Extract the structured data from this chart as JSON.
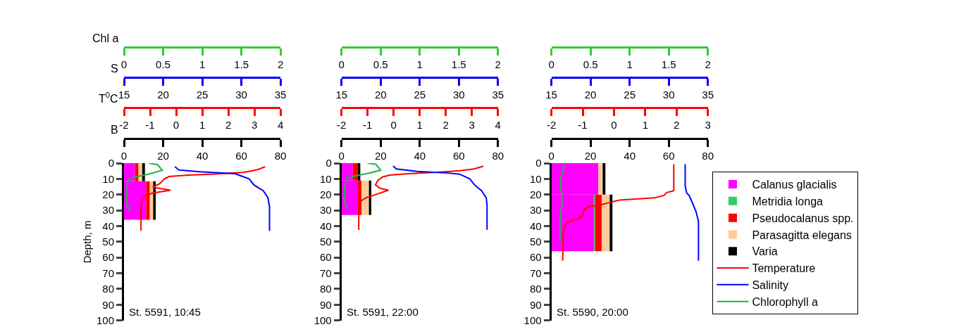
{
  "chart_data": [
    {
      "type": "bar",
      "orientation": "horizontal",
      "stacked": true,
      "x": [
        5.75,
        23.75
      ],
      "xlabel": "B",
      "x2label": "T$^{0}$C",
      "ylabel": "Depth, m",
      "xlim": [
        0,
        80
      ],
      "xticks": [
        0,
        20,
        40,
        60,
        80
      ],
      "x2lim": [
        -2,
        4
      ],
      "x2ticks": [
        -2,
        -1,
        0,
        1,
        2,
        3,
        4
      ],
      "ylim": [
        100,
        0
      ],
      "yticks": [
        0,
        10,
        20,
        30,
        40,
        50,
        60,
        70,
        80,
        90,
        100
      ],
      "annotations": [
        "St. 5591, 10:45"
      ],
      "series": [
        {
          "color": "#ff00ff",
          "values": [
            5.6,
            11.3
          ]
        },
        {
          "color": "#ff0000",
          "values": [
            1.8,
            1.9
          ]
        },
        {
          "color": "#ffcc99",
          "values": [
            1.9,
            1.7
          ]
        },
        {
          "color": "#000000",
          "values": [
            1.4,
            1.3
          ]
        },
        {
          "type": "line",
          "axis": "x2",
          "color": "#ff0000",
          "x": [
            2.2,
            4,
            5.8,
            7,
            7.6,
            8.5,
            10,
            13,
            15.3,
            17.2,
            19,
            20.5,
            22.8,
            28,
            43
          ],
          "values": [
            3.41,
            3.15,
            2.61,
            1.35,
            0.45,
            -0.27,
            -0.45,
            -0.63,
            -0.9,
            -0.22,
            -0.9,
            -1.17,
            -1.31,
            -1.35,
            -1.35
          ]
        }
      ]
    },
    {
      "type": "line",
      "orientation": "horizontal",
      "xlabel": "S",
      "x2label": "Chl a",
      "xlim": [
        15,
        35
      ],
      "xticks": [
        15,
        20,
        25,
        30,
        35
      ],
      "x2lim": [
        0,
        2
      ],
      "x2ticks": [
        0,
        0.5,
        1,
        1.5,
        2
      ],
      "ylim": [
        100,
        0
      ],
      "tick_labels": "x",
      "series": [
        {
          "color": "#0000ff",
          "x": [
            2.2,
            4.3,
            5.5,
            6.7,
            7.8,
            10,
            13.8,
            17.5,
            22,
            28,
            43
          ],
          "values": [
            21.5,
            22.0,
            24.7,
            29.2,
            29.8,
            31.0,
            31.6,
            32.8,
            33.4,
            33.6,
            33.6
          ]
        },
        {
          "axis": "x2",
          "color": "#22b04a",
          "x": [
            0,
            1,
            4.5,
            7,
            9.3,
            10.8,
            14.5,
            25,
            30
          ],
          "values": [
            0.32,
            0.43,
            0.49,
            0.31,
            0.1,
            0.05,
            0.04,
            0.03,
            0.07
          ]
        }
      ]
    },
    {
      "type": "bar",
      "orientation": "horizontal",
      "stacked": true,
      "x": [
        5.5,
        22
      ],
      "xlim": [
        0,
        80
      ],
      "xticks": [
        0,
        20,
        40,
        60,
        80
      ],
      "x2lim": [
        -2,
        4
      ],
      "x2ticks": [
        -2,
        -1,
        0,
        1,
        2,
        3,
        4
      ],
      "ylim": [
        100,
        0
      ],
      "yticks": [
        0,
        10,
        20,
        30,
        40,
        50,
        60,
        70,
        80,
        90,
        100
      ],
      "annotations": [
        "St. 5591, 22:00"
      ],
      "series": [
        {
          "color": "#ff00ff",
          "values": [
            5.8,
            8.4
          ]
        },
        {
          "color": "#ff0000",
          "values": [
            2.6,
            1.8
          ]
        },
        {
          "color": "#ffcc99",
          "values": [
            0,
            3.8
          ]
        },
        {
          "color": "#000000",
          "values": [
            1.2,
            1.2
          ]
        },
        {
          "type": "line",
          "axis": "x2",
          "color": "#ff0000",
          "x": [
            1.9,
            3.7,
            4.8,
            5.8,
            6.7,
            7.6,
            8.8,
            10.8,
            13.8,
            16,
            17.2,
            20.5,
            22,
            24.3,
            26.5,
            42.5
          ],
          "values": [
            3.44,
            3.08,
            2.54,
            1.64,
            0.56,
            -0.16,
            -0.43,
            -0.6,
            -0.7,
            -0.52,
            -0.2,
            -0.79,
            -1.06,
            -1.28,
            -1.34,
            -1.34
          ]
        }
      ]
    },
    {
      "type": "line",
      "orientation": "horizontal",
      "xlim": [
        15,
        35
      ],
      "xticks": [
        15,
        20,
        25,
        30,
        35
      ],
      "x2lim": [
        0,
        2
      ],
      "x2ticks": [
        0,
        0.5,
        1,
        1.5,
        2
      ],
      "ylim": [
        100,
        0
      ],
      "tick_labels": "x",
      "series": [
        {
          "color": "#0000ff",
          "x": [
            1.8,
            3.7,
            5.2,
            6.3,
            7,
            10,
            13.8,
            17.5,
            22,
            26.5,
            42.3
          ],
          "values": [
            21.6,
            22.0,
            24.7,
            28.7,
            30.1,
            31.4,
            32.0,
            32.9,
            33.5,
            33.6,
            33.6
          ]
        },
        {
          "axis": "x2",
          "color": "#22b04a",
          "x": [
            0,
            0.7,
            4.5,
            6.7,
            8.5,
            10,
            16,
            24.3,
            29.5
          ],
          "values": [
            0.33,
            0.44,
            0.5,
            0.32,
            0.14,
            0.06,
            0.04,
            0.03,
            0.08
          ]
        }
      ]
    },
    {
      "type": "bar",
      "orientation": "horizontal",
      "stacked": true,
      "x": [
        10,
        38
      ],
      "legend": "right",
      "xlim": [
        0,
        80
      ],
      "xticks": [
        0,
        20,
        40,
        60,
        80
      ],
      "x2lim": [
        -2,
        3
      ],
      "x2ticks": [
        -2,
        -1,
        0,
        1,
        2,
        3
      ],
      "ylim": [
        100,
        0
      ],
      "yticks": [
        0,
        10,
        20,
        30,
        40,
        50,
        60,
        70,
        80,
        90,
        100
      ],
      "annotations": [
        "St. 5590, 20:00"
      ],
      "series": [
        {
          "name": "Calanus glacialis",
          "color": "#ff00ff",
          "values": [
            24.0,
            21.8
          ]
        },
        {
          "name": "Metridia longa",
          "color": "#33cc66",
          "values": [
            0,
            0.5
          ]
        },
        {
          "name": "Pseudocalanus spp.",
          "color": "#ff0000",
          "values": [
            0,
            3.4
          ]
        },
        {
          "name": "Parasagitta elegans",
          "color": "#ffcc99",
          "values": [
            2.2,
            4.1
          ]
        },
        {
          "name": "Varia",
          "color": "#000000",
          "values": [
            1.4,
            1.4
          ]
        },
        {
          "name": "Temperature",
          "type": "line",
          "axis": "x2",
          "color": "#ff0000",
          "x": [
            0.7,
            17.5,
            18.7,
            20.5,
            22,
            23.5,
            25.3,
            26.5,
            27.7,
            29.5,
            34,
            35.5,
            37,
            38.5,
            43.8,
            62
          ],
          "values": [
            1.91,
            1.91,
            1.68,
            1.6,
            1.3,
            0.18,
            -0.2,
            -0.42,
            -0.8,
            -0.95,
            -1.02,
            -1.17,
            -1.4,
            -1.54,
            -1.62,
            -1.64
          ]
        }
      ]
    },
    {
      "type": "line",
      "orientation": "horizontal",
      "legend": "right",
      "xlim": [
        15,
        35
      ],
      "xticks": [
        15,
        20,
        25,
        30,
        35
      ],
      "x2lim": [
        0,
        2
      ],
      "x2ticks": [
        0,
        0.5,
        1,
        1.5,
        2
      ],
      "ylim": [
        100,
        0
      ],
      "tick_labels": "x",
      "series": [
        {
          "name": "Salinity",
          "color": "#0000ff",
          "x": [
            0.7,
            14.5,
            19,
            20.5,
            25,
            31,
            37,
            44.5,
            62
          ],
          "values": [
            32.1,
            32.1,
            32.3,
            32.6,
            33.0,
            33.5,
            33.8,
            33.8,
            33.8
          ]
        },
        {
          "name": "Chlorophyll a",
          "axis": "x2",
          "color": "#22b04a",
          "x": [
            1,
            5.5,
            10,
            16,
            25,
            31,
            37,
            50
          ],
          "values": [
            0.17,
            0.14,
            0.12,
            0.12,
            0.14,
            0.12,
            0.11,
            0.11
          ]
        }
      ]
    }
  ]
}
